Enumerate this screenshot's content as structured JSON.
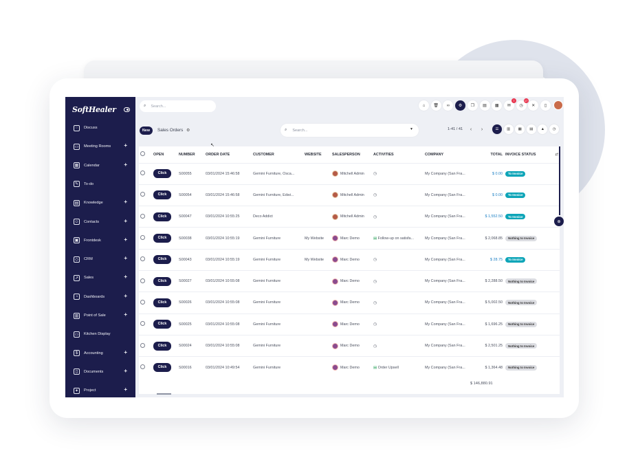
{
  "sidebar": {
    "logo": "SoftHealer",
    "items": [
      {
        "label": "Discuss",
        "icon": "discuss-icon",
        "glyph": "◌",
        "plus": false
      },
      {
        "label": "Meeting Rooms",
        "icon": "meeting-rooms-icon",
        "glyph": "▭",
        "plus": true
      },
      {
        "label": "Calendar",
        "icon": "calendar-icon",
        "glyph": "▦",
        "plus": true
      },
      {
        "label": "To-do",
        "icon": "todo-icon",
        "glyph": "✎",
        "plus": false
      },
      {
        "label": "Knowledge",
        "icon": "knowledge-icon",
        "glyph": "▤",
        "plus": true
      },
      {
        "label": "Contacts",
        "icon": "contacts-icon",
        "glyph": "☺",
        "plus": true
      },
      {
        "label": "Frontdesk",
        "icon": "frontdesk-icon",
        "glyph": "▣",
        "plus": true
      },
      {
        "label": "CRM",
        "icon": "crm-icon",
        "glyph": "◇",
        "plus": true
      },
      {
        "label": "Sales",
        "icon": "sales-icon",
        "glyph": "↗",
        "plus": true
      },
      {
        "label": "Dashboards",
        "icon": "dashboards-icon",
        "glyph": "◔",
        "plus": true
      },
      {
        "label": "Point of Sale",
        "icon": "point-of-sale-icon",
        "glyph": "▥",
        "plus": true
      },
      {
        "label": "Kitchen Display",
        "icon": "kitchen-display-icon",
        "glyph": "▭",
        "plus": false
      },
      {
        "label": "Accounting",
        "icon": "accounting-icon",
        "glyph": "$",
        "plus": true
      },
      {
        "label": "Documents",
        "icon": "documents-icon",
        "glyph": "▯",
        "plus": true
      },
      {
        "label": "Project",
        "icon": "project-icon",
        "glyph": "✦",
        "plus": true
      }
    ],
    "plus_glyph": "+"
  },
  "topbar": {
    "search_placeholder": "Search...",
    "icons": [
      {
        "name": "home-icon",
        "glyph": "⌂"
      },
      {
        "name": "trash-icon",
        "glyph": "🗑"
      },
      {
        "name": "link-icon",
        "glyph": "∞"
      },
      {
        "name": "settings-icon",
        "glyph": "⚙",
        "dark": true
      },
      {
        "name": "copy-icon",
        "glyph": "❐"
      },
      {
        "name": "clipboard-icon",
        "glyph": "▤"
      },
      {
        "name": "calculator-icon",
        "glyph": "▦"
      },
      {
        "name": "messages-icon",
        "glyph": "✉",
        "badge": "7"
      },
      {
        "name": "activity-icon",
        "glyph": "◷",
        "badge": "17"
      },
      {
        "name": "tools-icon",
        "glyph": "✕"
      },
      {
        "name": "document-icon",
        "glyph": "▯"
      }
    ]
  },
  "controls": {
    "new_label": "New",
    "breadcrumb": "Sales Orders",
    "search_placeholder": "Search...",
    "pager": "1-41 / 41",
    "prev": "‹",
    "next": "›",
    "views": [
      "list-view-icon",
      "kanban-view-icon",
      "calendar-view-icon",
      "pivot-view-icon",
      "graph-view-icon",
      "activity-view-icon"
    ]
  },
  "table": {
    "headers": [
      "OPEN",
      "NUMBER",
      "ORDER DATE",
      "CUSTOMER",
      "WEBSITE",
      "SALESPERSON",
      "ACTIVITIES",
      "COMPANY",
      "TOTAL",
      "INVOICE STATUS"
    ],
    "click_label": "Click",
    "rows": [
      {
        "number": "S00055",
        "date": "03/01/2024 15:46:58",
        "customer": "Gemini Furniture, Osca...",
        "website": "",
        "salesperson": "Mitchell Admin",
        "activity": "◷",
        "company": "My Company (San Fra...",
        "total": "$ 0.00",
        "status": "To Invoice"
      },
      {
        "number": "S00054",
        "date": "03/01/2024 15:46:58",
        "customer": "Gemini Furniture, Edwi...",
        "website": "",
        "salesperson": "Mitchell Admin",
        "activity": "◷",
        "company": "My Company (San Fra...",
        "total": "$ 0.00",
        "status": "To Invoice"
      },
      {
        "number": "S00047",
        "date": "03/01/2024 10:55:25",
        "customer": "Deco Addict",
        "website": "",
        "salesperson": "Mitchell Admin",
        "activity": "◷",
        "company": "My Company (San Fra...",
        "total": "$ 1,552.50",
        "status": "To Invoice"
      },
      {
        "number": "S00038",
        "date": "03/01/2024 10:55:19",
        "customer": "Gemini Furniture",
        "website": "My Website",
        "salesperson": "Marc Demo",
        "activity": "Follow-up on satisfa...",
        "company": "My Company (San Fra...",
        "total": "$ 2,068.85",
        "status": "Nothing to Invoice"
      },
      {
        "number": "S00043",
        "date": "03/01/2024 10:55:19",
        "customer": "Gemini Furniture",
        "website": "My Website",
        "salesperson": "Marc Demo",
        "activity": "◷",
        "company": "My Company (San Fra...",
        "total": "$ 28.75",
        "status": "To Invoice"
      },
      {
        "number": "S00027",
        "date": "03/01/2024 10:55:08",
        "customer": "Gemini Furniture",
        "website": "",
        "salesperson": "Marc Demo",
        "activity": "◷",
        "company": "My Company (San Fra...",
        "total": "$ 2,288.50",
        "status": "Nothing to Invoice"
      },
      {
        "number": "S00026",
        "date": "03/01/2024 10:55:08",
        "customer": "Gemini Furniture",
        "website": "",
        "salesperson": "Marc Demo",
        "activity": "◷",
        "company": "My Company (San Fra...",
        "total": "$ 5,002.50",
        "status": "Nothing to Invoice"
      },
      {
        "number": "S00025",
        "date": "03/01/2024 10:55:08",
        "customer": "Gemini Furniture",
        "website": "",
        "salesperson": "Marc Demo",
        "activity": "◷",
        "company": "My Company (San Fra...",
        "total": "$ 1,696.25",
        "status": "Nothing to Invoice"
      },
      {
        "number": "S00024",
        "date": "03/01/2024 10:55:08",
        "customer": "Gemini Furniture",
        "website": "",
        "salesperson": "Marc Demo",
        "activity": "◷",
        "company": "My Company (San Fra...",
        "total": "$ 2,501.25",
        "status": "Nothing to Invoice"
      },
      {
        "number": "S00016",
        "date": "03/01/2024 10:49:54",
        "customer": "Gemini Furniture",
        "website": "",
        "salesperson": "Marc Demo",
        "activity": "Order Upsell",
        "company": "My Company (San Fra...",
        "total": "$ 1,364.48",
        "status": "Nothing to Invoice"
      }
    ],
    "grand_total": "$ 146,880.91"
  },
  "colors": {
    "brand": "#1c1d4c",
    "to_invoice": "#0ea5b8",
    "total_link": "#1b7fc4"
  }
}
